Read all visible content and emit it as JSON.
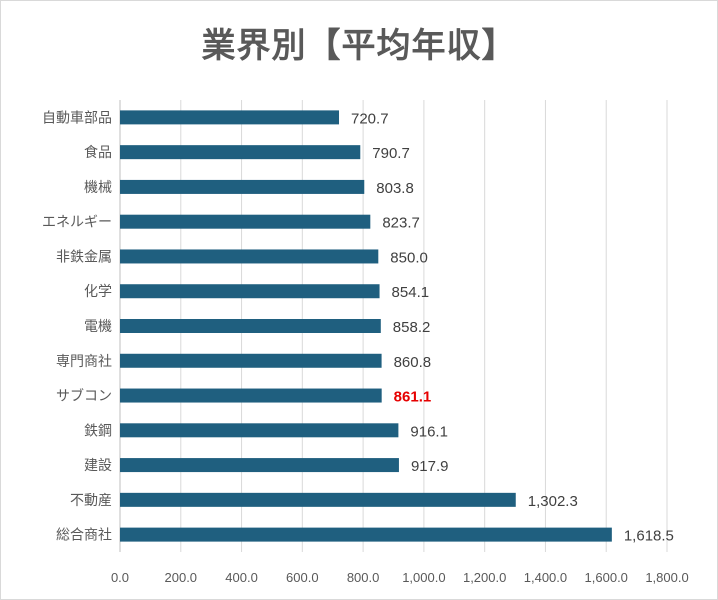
{
  "chart_data": {
    "type": "bar",
    "orientation": "horizontal",
    "title": "業界別【平均年収】",
    "xlabel": "",
    "ylabel": "",
    "xlim": [
      0,
      1800
    ],
    "xticks": [
      "0.0",
      "200.0",
      "400.0",
      "600.0",
      "800.0",
      "1,000.0",
      "1,200.0",
      "1,400.0",
      "1,600.0",
      "1,800.0"
    ],
    "grid": true,
    "legend": "none",
    "bar_color": "#1f5f7f",
    "highlight_color": "#e60000",
    "categories": [
      "自動車部品",
      "食品",
      "機械",
      "エネルギー",
      "非鉄金属",
      "化学",
      "電機",
      "専門商社",
      "サブコン",
      "鉄鋼",
      "建設",
      "不動産",
      "総合商社"
    ],
    "values": [
      720.7,
      790.7,
      803.8,
      823.7,
      850.0,
      854.1,
      858.2,
      860.8,
      861.1,
      916.1,
      917.9,
      1302.3,
      1618.5
    ],
    "value_labels": [
      "720.7",
      "790.7",
      "803.8",
      "823.7",
      "850.0",
      "854.1",
      "858.2",
      "860.8",
      "861.1",
      "916.1",
      "917.9",
      "1,302.3",
      "1,618.5"
    ],
    "highlighted_category": "サブコン"
  }
}
